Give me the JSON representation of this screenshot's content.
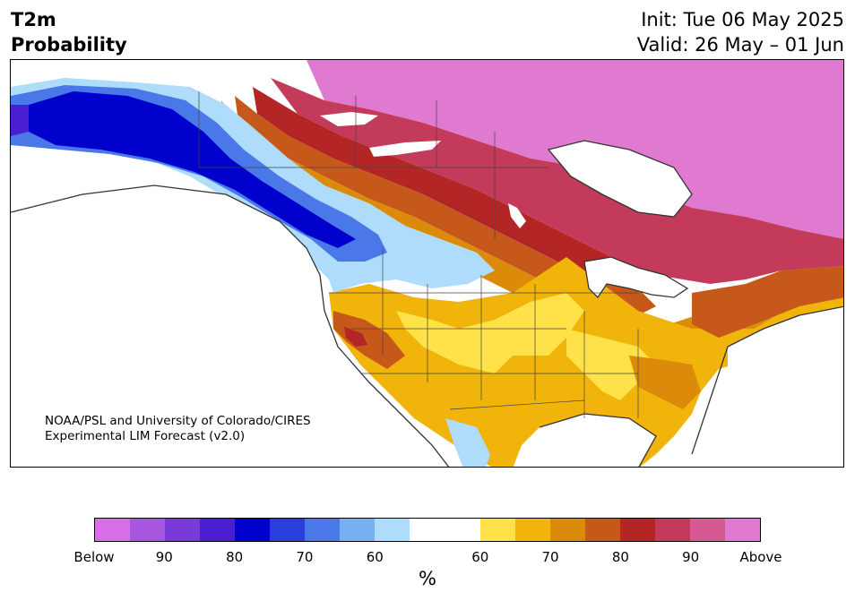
{
  "title": {
    "line1": "T2m",
    "line2": "Probability",
    "init": "Init: Tue 06 May 2025",
    "valid": "Valid: 26 May – 01 Jun"
  },
  "credit": {
    "line1": "NOAA/PSL and University of Colorado/CIRES",
    "line2": "Experimental LIM Forecast (v2.0)"
  },
  "colorbar": {
    "colors": [
      "#d86ee6",
      "#a856e0",
      "#7a3ad8",
      "#4a1fd2",
      "#0000cc",
      "#2a3ede",
      "#4a78e8",
      "#74b0f2",
      "#aedcfa",
      "#ffffff",
      "#ffffff",
      "#ffe14a",
      "#f0b40a",
      "#dc8a0a",
      "#c6581a",
      "#b42626",
      "#c43a5a",
      "#d65a92",
      "#e07ad0"
    ],
    "ticks": [
      "Below",
      "90",
      "80",
      "70",
      "60",
      "60",
      "70",
      "80",
      "90",
      "Above"
    ],
    "unit": "%"
  },
  "palette": {
    "below_strong": "#0000cc",
    "below_mid": "#4a78e8",
    "below_weak": "#aedcfa",
    "above_weak": "#ffe14a",
    "above_mid": "#f0b40a",
    "above_strong": "#b42626",
    "above_max": "#e07ad0",
    "land_line": "#333333"
  }
}
